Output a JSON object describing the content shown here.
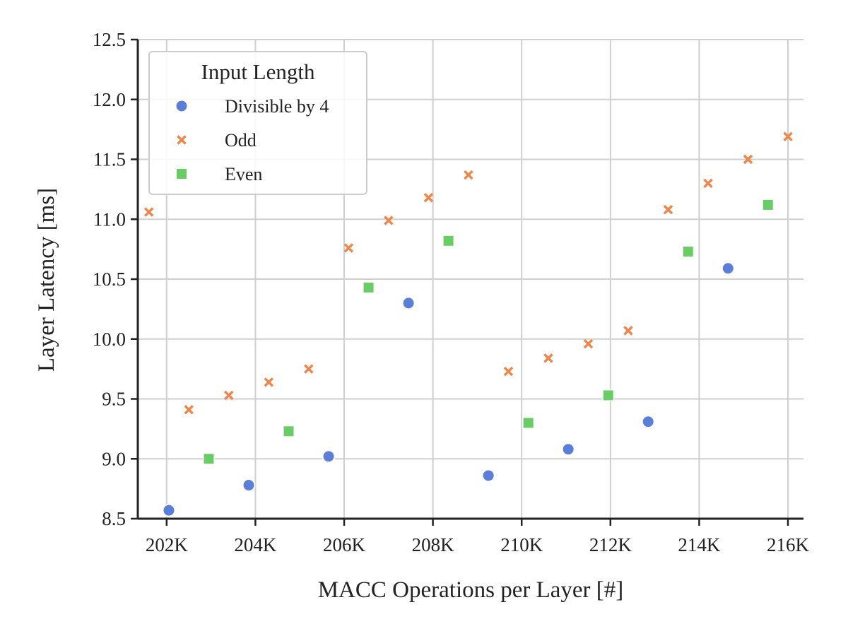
{
  "chart_data": {
    "type": "scatter",
    "title": "",
    "xlabel": "MACC Operations per Layer [#]",
    "ylabel": "Layer Latency [ms]",
    "xlim": [
      201350,
      216350
    ],
    "ylim": [
      8.5,
      12.5
    ],
    "x_ticks": [
      {
        "value": 202000,
        "label": "202K"
      },
      {
        "value": 204000,
        "label": "204K"
      },
      {
        "value": 206000,
        "label": "206K"
      },
      {
        "value": 208000,
        "label": "208K"
      },
      {
        "value": 210000,
        "label": "210K"
      },
      {
        "value": 212000,
        "label": "212K"
      },
      {
        "value": 214000,
        "label": "214K"
      },
      {
        "value": 216000,
        "label": "216K"
      }
    ],
    "y_ticks": [
      {
        "value": 8.5,
        "label": "8.5"
      },
      {
        "value": 9.0,
        "label": "9.0"
      },
      {
        "value": 9.5,
        "label": "9.5"
      },
      {
        "value": 10.0,
        "label": "10.0"
      },
      {
        "value": 10.5,
        "label": "10.5"
      },
      {
        "value": 11.0,
        "label": "11.0"
      },
      {
        "value": 11.5,
        "label": "11.5"
      },
      {
        "value": 12.0,
        "label": "12.0"
      },
      {
        "value": 12.5,
        "label": "12.5"
      }
    ],
    "grid": true,
    "legend": {
      "title": "Input Length",
      "placement": "top-left"
    },
    "series": [
      {
        "name": "Divisible by 4",
        "marker": "circle",
        "color": "#5b7fd8",
        "points": [
          {
            "x": 202050,
            "y": 8.57
          },
          {
            "x": 203850,
            "y": 8.78
          },
          {
            "x": 205650,
            "y": 9.02
          },
          {
            "x": 207450,
            "y": 10.3
          },
          {
            "x": 209250,
            "y": 8.86
          },
          {
            "x": 211050,
            "y": 9.08
          },
          {
            "x": 212850,
            "y": 9.31
          },
          {
            "x": 214650,
            "y": 10.59
          }
        ]
      },
      {
        "name": "Odd",
        "marker": "x",
        "color": "#ee854a",
        "points": [
          {
            "x": 201600,
            "y": 11.06
          },
          {
            "x": 202500,
            "y": 9.41
          },
          {
            "x": 203400,
            "y": 9.53
          },
          {
            "x": 204300,
            "y": 9.64
          },
          {
            "x": 205200,
            "y": 9.75
          },
          {
            "x": 206100,
            "y": 10.76
          },
          {
            "x": 207000,
            "y": 10.99
          },
          {
            "x": 207900,
            "y": 11.18
          },
          {
            "x": 208800,
            "y": 11.37
          },
          {
            "x": 209700,
            "y": 9.73
          },
          {
            "x": 210600,
            "y": 9.84
          },
          {
            "x": 211500,
            "y": 9.96
          },
          {
            "x": 212400,
            "y": 10.07
          },
          {
            "x": 213300,
            "y": 11.08
          },
          {
            "x": 214200,
            "y": 11.3
          },
          {
            "x": 215100,
            "y": 11.5
          },
          {
            "x": 216000,
            "y": 11.69
          }
        ]
      },
      {
        "name": "Even",
        "marker": "square",
        "color": "#6acc64",
        "points": [
          {
            "x": 202950,
            "y": 9.0
          },
          {
            "x": 204750,
            "y": 9.23
          },
          {
            "x": 206550,
            "y": 10.43
          },
          {
            "x": 208350,
            "y": 10.82
          },
          {
            "x": 210150,
            "y": 9.3
          },
          {
            "x": 211950,
            "y": 9.53
          },
          {
            "x": 213750,
            "y": 10.73
          },
          {
            "x": 215550,
            "y": 11.12
          }
        ]
      }
    ]
  }
}
